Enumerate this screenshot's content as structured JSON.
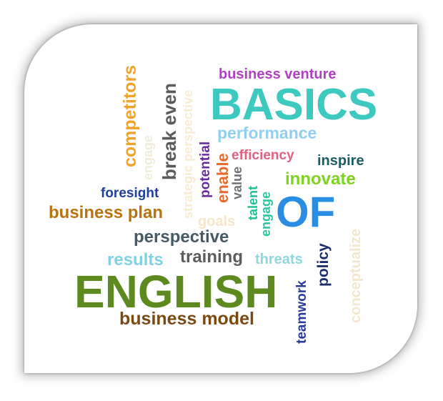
{
  "cloud": {
    "words": {
      "business_venture": {
        "text": "business venture",
        "color": "#b13fc4"
      },
      "basics": {
        "text": "BASICS",
        "color": "#3dc9bf"
      },
      "competitors": {
        "text": "competitors",
        "color": "#f0a32a"
      },
      "engage_faded": {
        "text": "engage",
        "color": "#f0ecd8"
      },
      "break_even": {
        "text": "break even",
        "color": "#5b5b5b"
      },
      "strategic_perspective": {
        "text": "strategic perspective",
        "color": "#f7ecd2"
      },
      "performance": {
        "text": "performance",
        "color": "#8fd0f0"
      },
      "potential": {
        "text": "potential",
        "color": "#6b2ba0"
      },
      "enable": {
        "text": "enable",
        "color": "#e8692a"
      },
      "efficiency": {
        "text": "efficiency",
        "color": "#e2607e"
      },
      "inspire": {
        "text": "inspire",
        "color": "#1a5e63"
      },
      "value": {
        "text": "value",
        "color": "#707070"
      },
      "innovate": {
        "text": "innovate",
        "color": "#7ed321"
      },
      "foresight": {
        "text": "foresight",
        "color": "#1e3f9c"
      },
      "talent": {
        "text": "talent",
        "color": "#1fbf95"
      },
      "engage": {
        "text": "engage",
        "color": "#2ec4a0"
      },
      "of": {
        "text": "OF",
        "color": "#2a8de4"
      },
      "business_plan": {
        "text": "business plan",
        "color": "#b8730f"
      },
      "goals": {
        "text": "goals",
        "color": "#f7e6c8"
      },
      "conceptualize": {
        "text": "conceptualize",
        "color": "#f2e6cc"
      },
      "perspective": {
        "text": "perspective",
        "color": "#455a64"
      },
      "policy": {
        "text": "policy",
        "color": "#1c2d6b"
      },
      "results": {
        "text": "results",
        "color": "#82d0e6"
      },
      "training": {
        "text": "training",
        "color": "#5c5c5c"
      },
      "threats": {
        "text": "threats",
        "color": "#8ed6e0"
      },
      "teamwork": {
        "text": "teamwork",
        "color": "#2a3a9c"
      },
      "english": {
        "text": "ENGLISH",
        "color": "#5d8a1f"
      },
      "business_model": {
        "text": "business model",
        "color": "#7b4a12"
      }
    }
  }
}
